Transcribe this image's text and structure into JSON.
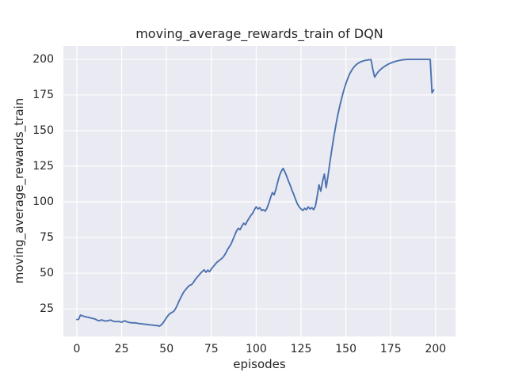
{
  "figure": {
    "background_color": "#ffffff"
  },
  "chart_data": {
    "type": "line",
    "title": "moving_average_rewards_train of DQN",
    "xlabel": "episodes",
    "ylabel": "moving_average_rewards_train",
    "x_ticks": [
      0,
      25,
      50,
      75,
      100,
      125,
      150,
      175,
      200
    ],
    "y_ticks": [
      25,
      50,
      75,
      100,
      125,
      150,
      175,
      200
    ],
    "xlim": [
      -7.5,
      211.1
    ],
    "ylim": [
      5.6,
      209.4
    ],
    "grid": true,
    "legend": false,
    "style": "seaborn-darkgrid",
    "colors": {
      "axes_background": "#eaeaf2",
      "gridline": "#ffffff",
      "text": "#262626",
      "line": "#4c72b0"
    },
    "series": [
      {
        "name": "moving_average_rewards_train",
        "color": "#4c72b0",
        "x_start": 0,
        "x_step": 1,
        "values": [
          17.5,
          17.6,
          20.6,
          20.1,
          19.7,
          19.4,
          19.1,
          18.8,
          18.5,
          18.2,
          17.9,
          17.3,
          16.6,
          16.9,
          17.2,
          16.7,
          16.4,
          16.6,
          16.9,
          17.1,
          16.4,
          16.1,
          16.0,
          16.2,
          15.9,
          15.6,
          16.3,
          16.5,
          15.8,
          15.5,
          15.3,
          15.1,
          15.2,
          15.0,
          14.8,
          14.6,
          14.5,
          14.3,
          14.2,
          14.0,
          13.9,
          13.7,
          13.6,
          13.4,
          13.3,
          13.2,
          12.8,
          13.6,
          15.0,
          16.8,
          18.8,
          20.5,
          21.8,
          22.4,
          23.2,
          25.0,
          27.5,
          30.5,
          33.0,
          35.5,
          37.5,
          39.0,
          40.5,
          41.5,
          42.0,
          43.5,
          45.5,
          47.0,
          48.5,
          50.0,
          51.2,
          52.3,
          50.6,
          52.1,
          51.0,
          53.0,
          54.5,
          56.0,
          57.5,
          58.5,
          59.5,
          60.5,
          62.0,
          64.0,
          66.5,
          68.5,
          70.5,
          73.5,
          76.5,
          79.5,
          81.5,
          80.5,
          83.0,
          85.0,
          84.0,
          86.5,
          88.5,
          90.5,
          92.0,
          94.5,
          96.5,
          95.0,
          96.0,
          94.0,
          94.5,
          93.5,
          95.5,
          99.0,
          103.0,
          106.5,
          105.0,
          109.0,
          114.0,
          118.5,
          121.5,
          123.5,
          121.0,
          118.0,
          114.5,
          111.5,
          108.0,
          105.0,
          101.5,
          98.5,
          96.5,
          95.0,
          94.0,
          95.5,
          94.5,
          96.5,
          95.0,
          96.0,
          94.5,
          97.0,
          104.0,
          112.0,
          107.5,
          114.5,
          119.5,
          110.0,
          118.0,
          127.0,
          135.5,
          143.5,
          151.0,
          158.0,
          164.0,
          169.5,
          174.5,
          179.0,
          183.0,
          186.5,
          189.5,
          191.8,
          193.8,
          195.3,
          196.5,
          197.4,
          198.1,
          198.6,
          199.0,
          199.3,
          199.5,
          199.7,
          199.8,
          193.0,
          187.5,
          189.5,
          191.2,
          192.5,
          193.6,
          194.6,
          195.4,
          196.2,
          196.8,
          197.4,
          197.9,
          198.3,
          198.7,
          199.0,
          199.3,
          199.5,
          199.7,
          199.8,
          199.9,
          199.9,
          200.0,
          200.0,
          200.0,
          200.0,
          200.0,
          200.0,
          200.0,
          200.0,
          200.0,
          200.0,
          200.0,
          199.9,
          176.5,
          178.5
        ]
      }
    ]
  }
}
